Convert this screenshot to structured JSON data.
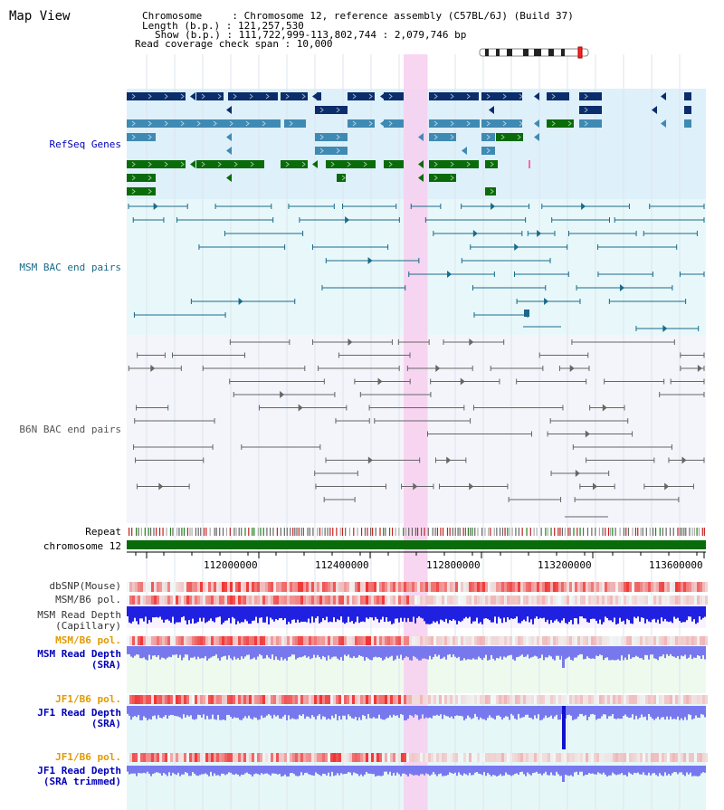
{
  "header": {
    "title": "Map View",
    "info_lines": [
      "Chromosome     : Chromosome 12, reference assembly (C57BL/6J) (Build 37)",
      "Length (b.p.) : 121,257,530",
      "Show (b.p.) : 111,722,999-113,802,744 : 2,079,746 bp",
      "Read coverage check span : 10,000"
    ]
  },
  "tracks": {
    "refseq": "RefSeq Genes",
    "msm_bac": "MSM BAC end pairs",
    "b6n_bac": "B6N BAC end pairs",
    "repeat": "Repeat",
    "chromosome": "chromosome 12",
    "dbsnp": "dbSNP(Mouse)",
    "msm_b6_pol": "MSM/B6 pol.",
    "msm_depth_cap_1": "MSM Read Depth",
    "msm_depth_cap_2": "(Capillary)",
    "msm_b6_pol_2": "MSM/B6 pol.",
    "msm_depth_sra_1": "MSM Read Depth",
    "msm_depth_sra_2": "(SRA)",
    "jf1_b6_pol": "JF1/B6 pol.",
    "jf1_depth_sra_1": "JF1 Read Depth",
    "jf1_depth_sra_2": "(SRA)",
    "jf1_b6_pol_2": "JF1/B6 pol.",
    "jf1_depth_trim_1": "JF1 Read Depth",
    "jf1_depth_trim_2": "(SRA trimmed)"
  },
  "axis": {
    "ticks": [
      "112000000",
      "112400000",
      "112800000",
      "113200000",
      "113600000"
    ]
  },
  "colors": {
    "gene_dark": "#0b2d6b",
    "gene_mid": "#3f8ab3",
    "gene_green": "#0a6b0a",
    "msm_line": "#1a6a8a",
    "b6n_line": "#666666",
    "highlight": "#f7cfee",
    "label_blue": "#0000bb",
    "label_orange": "#e39a00",
    "depth_blue": "#2020e0",
    "depth_light": "#7878ee"
  }
}
